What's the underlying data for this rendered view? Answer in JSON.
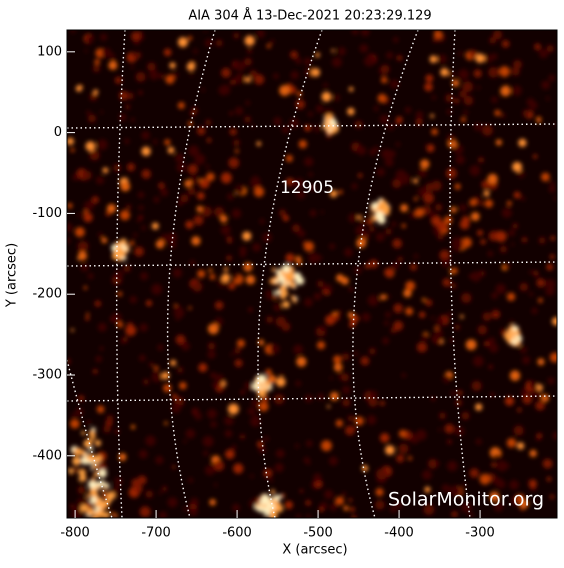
{
  "chart_data": {
    "type": "image",
    "title": "AIA 304 Å 13-Dec-2021 20:23:29.129",
    "xlabel": "X (arcsec)",
    "ylabel": "Y (arcsec)",
    "xlim": [
      -810,
      -205
    ],
    "ylim": [
      -477,
      127
    ],
    "xticks": [
      -800,
      -700,
      -600,
      -500,
      -400,
      -300
    ],
    "yticks": [
      -400,
      -300,
      -200,
      -100,
      0,
      100
    ],
    "annotations": [
      "12905"
    ],
    "watermark": "SolarMonitor.org"
  }
}
